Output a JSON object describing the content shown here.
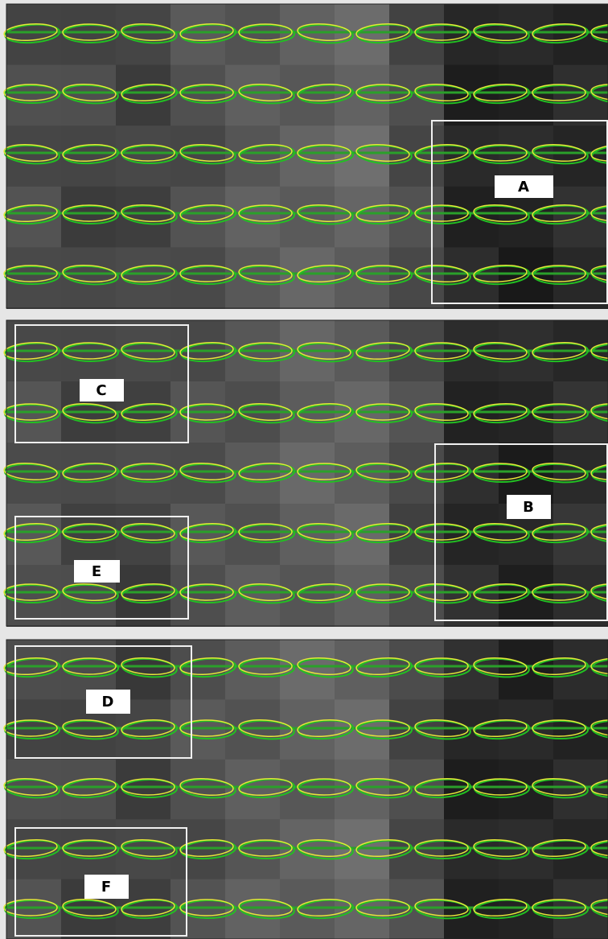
{
  "panels": [
    {
      "labels": [
        "A"
      ]
    },
    {
      "labels": [
        "C",
        "B",
        "E"
      ]
    },
    {
      "labels": [
        "D",
        "F"
      ]
    }
  ]
}
